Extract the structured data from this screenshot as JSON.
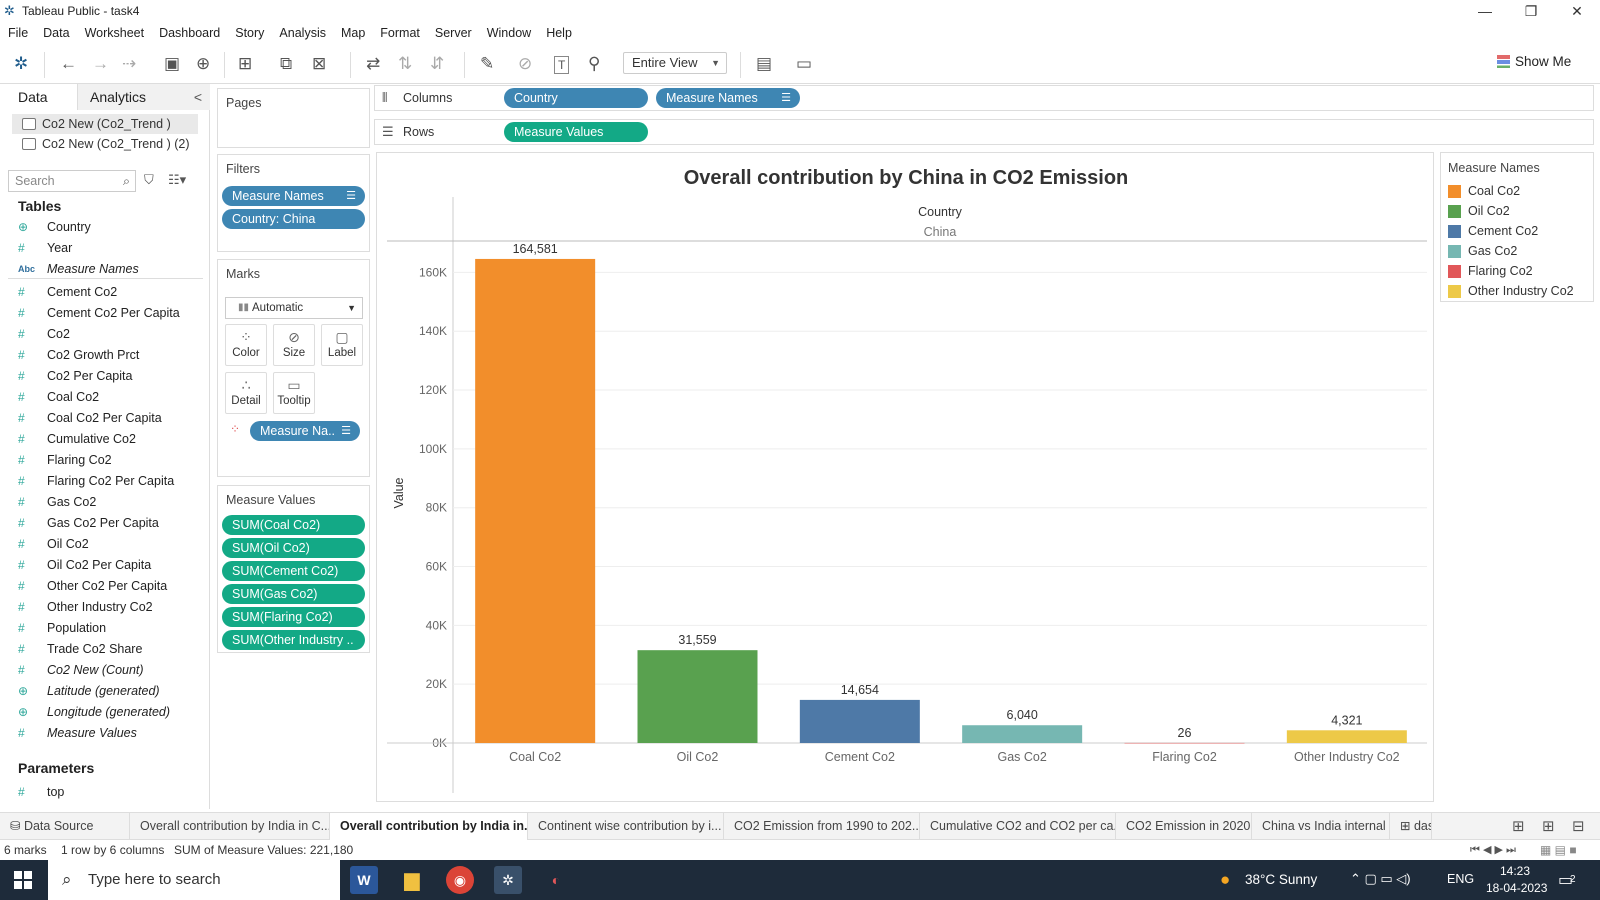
{
  "window": {
    "title": "Tableau Public - task4"
  },
  "menu": [
    "File",
    "Data",
    "Worksheet",
    "Dashboard",
    "Story",
    "Analysis",
    "Map",
    "Format",
    "Server",
    "Window",
    "Help"
  ],
  "toolbar": {
    "fit_label": "Entire View",
    "show_me_label": "Show Me"
  },
  "datapane": {
    "tab_data": "Data",
    "tab_analytics": "Analytics",
    "datasources": [
      "Co2 New (Co2_Trend )",
      "Co2 New (Co2_Trend ) (2)"
    ],
    "search_placeholder": "Search",
    "tables_label": "Tables",
    "dimensions": [
      {
        "name": "Country",
        "icon": "globe-icon",
        "italic": false
      },
      {
        "name": "Year",
        "icon": "hash-icon",
        "italic": false
      },
      {
        "name": "Measure Names",
        "icon": "abc-icon",
        "italic": true
      }
    ],
    "measures": [
      {
        "name": "Cement Co2",
        "italic": false
      },
      {
        "name": "Cement Co2 Per Capita",
        "italic": false
      },
      {
        "name": "Co2",
        "italic": false
      },
      {
        "name": "Co2 Growth Prct",
        "italic": false
      },
      {
        "name": "Co2 Per Capita",
        "italic": false
      },
      {
        "name": "Coal Co2",
        "italic": false
      },
      {
        "name": "Coal Co2 Per Capita",
        "italic": false
      },
      {
        "name": "Cumulative Co2",
        "italic": false
      },
      {
        "name": "Flaring Co2",
        "italic": false
      },
      {
        "name": "Flaring Co2 Per Capita",
        "italic": false
      },
      {
        "name": "Gas Co2",
        "italic": false
      },
      {
        "name": "Gas Co2 Per Capita",
        "italic": false
      },
      {
        "name": "Oil Co2",
        "italic": false
      },
      {
        "name": "Oil Co2 Per Capita",
        "italic": false
      },
      {
        "name": "Other Co2 Per Capita",
        "italic": false
      },
      {
        "name": "Other Industry Co2",
        "italic": false
      },
      {
        "name": "Population",
        "italic": false
      },
      {
        "name": "Trade Co2 Share",
        "italic": false
      },
      {
        "name": "Co2 New (Count)",
        "italic": true
      },
      {
        "name": "Latitude (generated)",
        "italic": true,
        "icon": "globe-icon"
      },
      {
        "name": "Longitude (generated)",
        "italic": true,
        "icon": "globe-icon"
      },
      {
        "name": "Measure Values",
        "italic": true
      }
    ],
    "parameters_label": "Parameters",
    "parameters": [
      "top"
    ]
  },
  "cards": {
    "pages_label": "Pages",
    "filters_label": "Filters",
    "filters": [
      "Measure Names",
      "Country: China"
    ],
    "marks_label": "Marks",
    "mark_type": "Automatic",
    "mark_buttons": [
      "Color",
      "Size",
      "Label",
      "Detail",
      "Tooltip"
    ],
    "mark_pill": "Measure Na..",
    "measure_values_label": "Measure Values",
    "measure_values": [
      "SUM(Coal Co2)",
      "SUM(Oil Co2)",
      "SUM(Cement Co2)",
      "SUM(Gas Co2)",
      "SUM(Flaring Co2)",
      "SUM(Other Industry .."
    ]
  },
  "shelves": {
    "columns_label": "Columns",
    "columns": [
      "Country",
      "Measure Names"
    ],
    "rows_label": "Rows",
    "rows": [
      "Measure Values"
    ]
  },
  "chart_data": {
    "type": "bar",
    "title": "Overall contribution by China in CO2 Emission",
    "header_label": "Country",
    "header_value": "China",
    "ylabel": "Value",
    "categories": [
      "Coal Co2",
      "Oil Co2",
      "Cement Co2",
      "Gas Co2",
      "Flaring Co2",
      "Other Industry Co2"
    ],
    "values": [
      164581,
      31559,
      14654,
      6040,
      26,
      4321
    ],
    "data_labels": [
      "164,581",
      "31,559",
      "14,654",
      "6,040",
      "26",
      "4,321"
    ],
    "colors": [
      "#f28e2b",
      "#59a14f",
      "#4e79a7",
      "#76b7b2",
      "#e15759",
      "#edc948"
    ],
    "yticks": [
      0,
      20000,
      40000,
      60000,
      80000,
      100000,
      120000,
      140000,
      160000
    ],
    "ytick_labels": [
      "0K",
      "20K",
      "40K",
      "60K",
      "80K",
      "100K",
      "120K",
      "140K",
      "160K"
    ],
    "ylim": [
      0,
      170000
    ],
    "grid": true
  },
  "legend": {
    "title": "Measure Names",
    "items": [
      "Coal Co2",
      "Oil Co2",
      "Cement Co2",
      "Gas Co2",
      "Flaring Co2",
      "Other Industry Co2"
    ]
  },
  "sheet_tabs": {
    "data_source": "Data Source",
    "tabs": [
      "Overall contribution by India in C...",
      "Overall contribution by India in...",
      "Continent wise contribution by i...",
      "CO2 Emission from 1990 to 202...",
      "Cumulative CO2 and CO2 per ca...",
      "CO2 Emission in 2020",
      "China vs India internal factors",
      "dash"
    ],
    "active_index": 1
  },
  "status": {
    "marks": "6 marks",
    "dims": "1 row by 6 columns",
    "sum": "SUM of Measure Values: 221,180"
  },
  "taskbar": {
    "search_placeholder": "Type here to search",
    "weather": "38°C  Sunny",
    "lang": "ENG",
    "time": "14:23",
    "date": "18-04-2023",
    "notif": "2"
  }
}
